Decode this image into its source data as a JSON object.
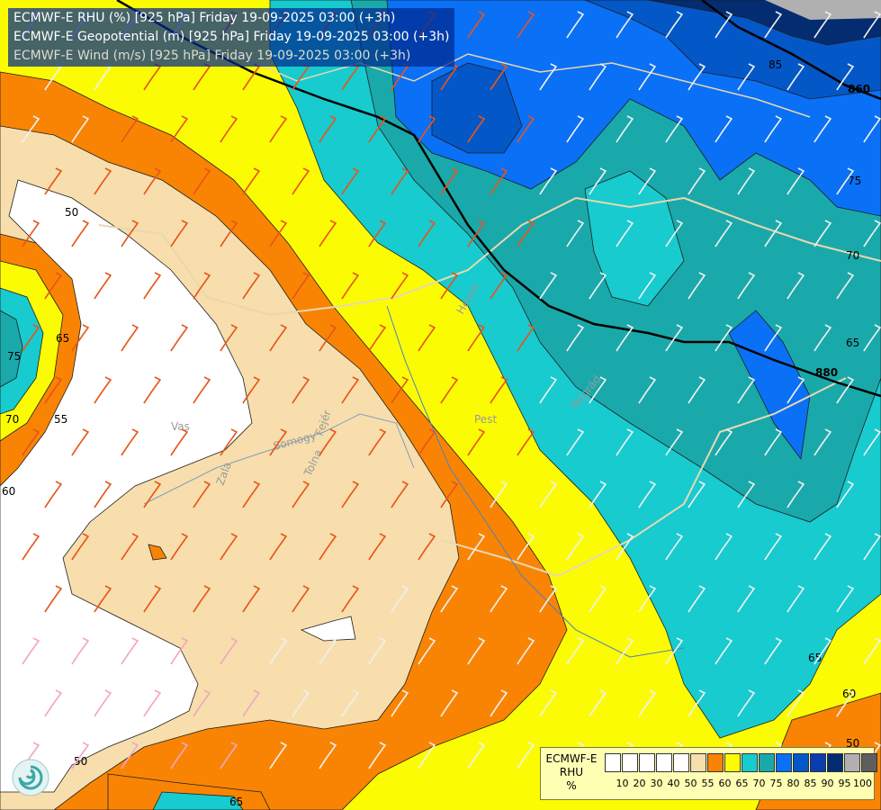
{
  "header": {
    "line1": "ECMWF-E RHU (%) [925 hPa] Friday 19-09-2025 03:00 (+3h)",
    "line2": "ECMWF-E Geopotential (m) [925 hPa] Friday 19-09-2025 03:00 (+3h)",
    "line3": "ECMWF-E Wind (m/s) [925 hPa] Friday 19-09-2025 03:00 (+3h)"
  },
  "legend": {
    "title_lines": [
      "ECMWF-E",
      "RHU",
      "%"
    ],
    "colors": [
      "#ffffff",
      "#ffffff",
      "#ffffff",
      "#ffffff",
      "#ffffff",
      "#f7deac",
      "#f98404",
      "#fbfc04",
      "#17cbcf",
      "#1aa9aa",
      "#0a70f6",
      "#0457c7",
      "#0b3cb0",
      "#042c71",
      "#b0b0b0",
      "#5e5e5e"
    ],
    "ticks": [
      "10",
      "20",
      "30",
      "40",
      "50",
      "55",
      "60",
      "65",
      "70",
      "75",
      "80",
      "85",
      "90",
      "95",
      "100"
    ]
  },
  "contour_labels": {
    "geopotential": [
      "860",
      "880"
    ],
    "rhu": [
      "85",
      "75",
      "70",
      "65",
      "65",
      "60",
      "50",
      "50",
      "55",
      "60",
      "65",
      "70",
      "75",
      "65",
      "50"
    ]
  },
  "place_names": [
    "Vas",
    "Zala",
    "Somogy",
    "Tolna",
    "Fejér",
    "Pest",
    "Heves",
    "Nógrád"
  ]
}
